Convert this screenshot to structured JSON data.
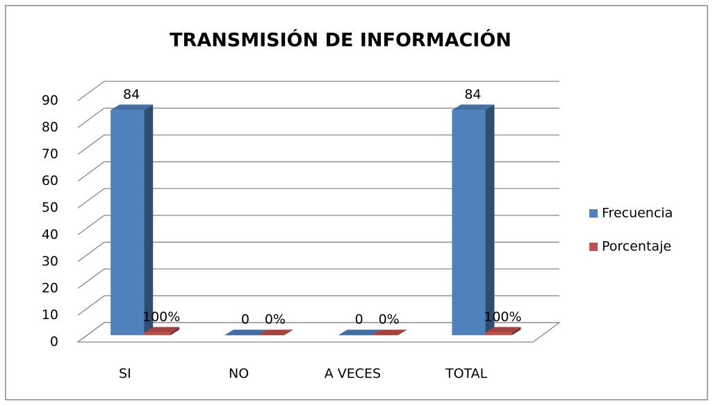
{
  "chart_data": {
    "type": "bar3d",
    "title": "TRANSMISIÓN DE INFORMACIÓN",
    "categories": [
      "SI",
      "NO",
      "A VECES",
      "TOTAL"
    ],
    "series": [
      {
        "name": "Frecuencia",
        "color": "#4f81bd",
        "values": [
          84,
          0,
          0,
          84
        ]
      },
      {
        "name": "Porcentaje",
        "color": "#c0504d",
        "values": [
          1,
          0,
          0,
          1
        ],
        "value_labels": [
          "100%",
          "0%",
          "0%",
          "100%"
        ]
      }
    ],
    "ylim": [
      0,
      90
    ],
    "yticks": [
      0,
      10,
      20,
      30,
      40,
      50,
      60,
      70,
      80,
      90
    ],
    "grid": true,
    "legend": "right"
  }
}
